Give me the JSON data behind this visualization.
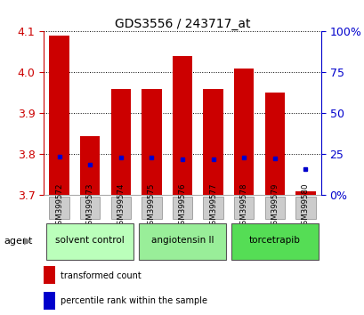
{
  "title": "GDS3556 / 243717_at",
  "samples": [
    "GSM399572",
    "GSM399573",
    "GSM399574",
    "GSM399575",
    "GSM399576",
    "GSM399577",
    "GSM399578",
    "GSM399579",
    "GSM399580"
  ],
  "red_values": [
    4.09,
    3.845,
    3.96,
    3.96,
    4.04,
    3.96,
    4.01,
    3.95,
    3.71
  ],
  "blue_values": [
    3.795,
    3.775,
    3.793,
    3.793,
    3.789,
    3.789,
    3.793,
    3.791,
    3.765
  ],
  "ymin": 3.7,
  "ymax": 4.1,
  "y_ticks": [
    3.7,
    3.8,
    3.9,
    4.0,
    4.1
  ],
  "y2_ticks": [
    0,
    25,
    50,
    75,
    100
  ],
  "y2_tick_labels": [
    "0%",
    "25",
    "50",
    "75",
    "100%"
  ],
  "bar_color": "#cc0000",
  "dot_color": "#0000cc",
  "bar_width": 0.65,
  "groups": [
    {
      "label": "solvent control",
      "indices": [
        0,
        1,
        2
      ],
      "color": "#bbffbb"
    },
    {
      "label": "angiotensin II",
      "indices": [
        3,
        4,
        5
      ],
      "color": "#99ee99"
    },
    {
      "label": "torcetrapib",
      "indices": [
        6,
        7,
        8
      ],
      "color": "#55dd55"
    }
  ],
  "agent_label": "agent",
  "legend_red": "transformed count",
  "legend_blue": "percentile rank within the sample",
  "tick_color_left": "#cc0000",
  "tick_color_right": "#0000cc",
  "bg_color": "#ffffff",
  "grid_color": "#000000",
  "xticklabel_bg": "#cccccc"
}
